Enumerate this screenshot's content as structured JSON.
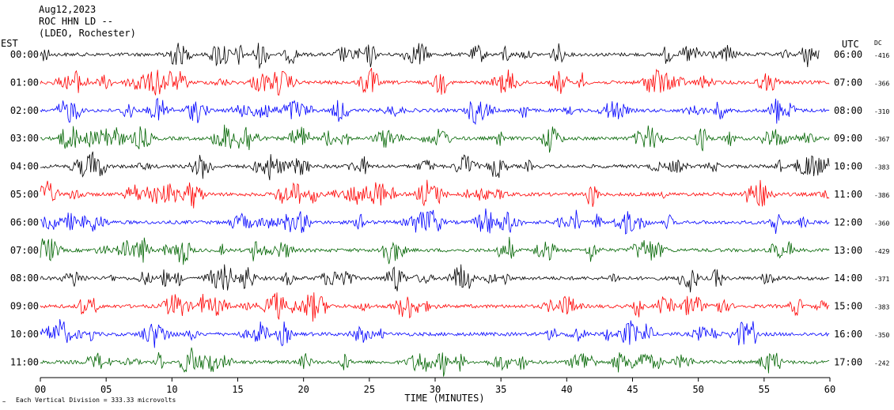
{
  "header": {
    "date": "Aug12,2023",
    "station": "ROC HHN LD --",
    "network": "(LDEO, Rochester)"
  },
  "left_axis_label": "EST",
  "right_axis_label": "UTC",
  "dc_label": "DC",
  "footer": {
    "scale_note": "Each Vertical Division =  333.33 microvolts"
  },
  "chart_data": {
    "type": "line",
    "title": "",
    "xlabel": "TIME (MINUTES)",
    "ylabel": "",
    "xlim": [
      0,
      60
    ],
    "x_ticks": [
      "00",
      "05",
      "10",
      "15",
      "20",
      "25",
      "30",
      "35",
      "40",
      "45",
      "50",
      "55",
      "60"
    ],
    "x_tick_values": [
      0,
      5,
      10,
      15,
      20,
      25,
      30,
      35,
      40,
      45,
      50,
      55,
      60
    ],
    "grid": false,
    "colors": [
      "#000000",
      "#ff0000",
      "#0000ff",
      "#006400"
    ],
    "rows": [
      {
        "est": "00:00",
        "utc": "06:00",
        "dc": "-416",
        "color": "#000000"
      },
      {
        "est": "01:00",
        "utc": "07:00",
        "dc": "-366",
        "color": "#ff0000"
      },
      {
        "est": "02:00",
        "utc": "08:00",
        "dc": "-310",
        "color": "#0000ff"
      },
      {
        "est": "03:00",
        "utc": "09:00",
        "dc": "-367",
        "color": "#006400"
      },
      {
        "est": "04:00",
        "utc": "10:00",
        "dc": "-383",
        "color": "#000000"
      },
      {
        "est": "05:00",
        "utc": "11:00",
        "dc": "-386",
        "color": "#ff0000"
      },
      {
        "est": "06:00",
        "utc": "12:00",
        "dc": "-360",
        "color": "#0000ff"
      },
      {
        "est": "07:00",
        "utc": "13:00",
        "dc": "-429",
        "color": "#006400"
      },
      {
        "est": "08:00",
        "utc": "14:00",
        "dc": "-371",
        "color": "#000000"
      },
      {
        "est": "09:00",
        "utc": "15:00",
        "dc": "-383",
        "color": "#ff0000"
      },
      {
        "est": "10:00",
        "utc": "16:00",
        "dc": "-350",
        "color": "#0000ff"
      },
      {
        "est": "11:00",
        "utc": "17:00",
        "dc": "-242",
        "color": "#006400"
      }
    ]
  }
}
